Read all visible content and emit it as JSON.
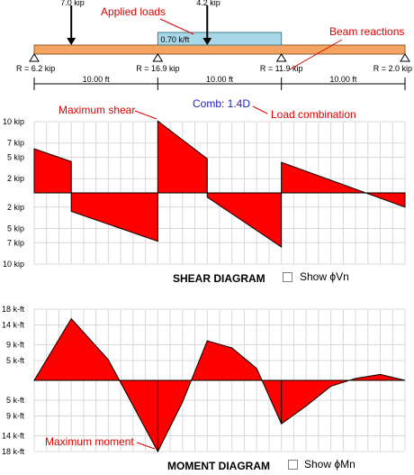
{
  "beam": {
    "point_loads": [
      {
        "label": "7.0 kip",
        "value_kip": 7.0,
        "position_ft": 3.0
      },
      {
        "label": "4.2 kip",
        "value_kip": 4.2,
        "position_ft": 14.0
      }
    ],
    "distributed_load": {
      "label": "0.70 k/ft",
      "value_kft": 0.7,
      "start_ft": 10.0,
      "end_ft": 20.0
    },
    "supports": [
      {
        "label": "R = 6.2 kip",
        "position_ft": 0
      },
      {
        "label": "R = 16.9 kip",
        "position_ft": 10
      },
      {
        "label": "R = 11.9 kip",
        "position_ft": 20
      },
      {
        "label": "R = 2.0 kip",
        "position_ft": 30
      }
    ],
    "spans": [
      "10.00 ft",
      "10.00 ft",
      "10.00 ft"
    ],
    "total_length_ft": 30
  },
  "annotations": {
    "applied_loads": "Applied loads",
    "beam_reactions": "Beam reactions",
    "maximum_shear": "Maximum shear",
    "load_combination": "Load combination",
    "maximum_moment": "Maximum moment"
  },
  "load_combination_value": "Comb: 1.4D",
  "colors": {
    "annotation": "#e00000",
    "combo": "#2020c0",
    "diagram_fill": "#ff0000",
    "beam": "#f4a460",
    "dist_load": "#a8d8e8",
    "grid": "#d8d8d8"
  },
  "shear": {
    "title": "SHEAR DIAGRAM",
    "checkbox_label": "Show ϕVn",
    "y_ticks": [
      {
        "value": 10,
        "label": "10 kip"
      },
      {
        "value": 7,
        "label": "7 kip"
      },
      {
        "value": 5,
        "label": "5 kip"
      },
      {
        "value": 2,
        "label": "2 kip"
      },
      {
        "value": -2,
        "label": "2 kip"
      },
      {
        "value": -5,
        "label": "5 kip"
      },
      {
        "value": -7,
        "label": "7 kip"
      },
      {
        "value": -10,
        "label": "10 kip"
      }
    ],
    "ylim": [
      -10,
      10
    ],
    "points": [
      [
        0,
        0
      ],
      [
        0,
        6.2
      ],
      [
        3,
        4.4
      ],
      [
        3,
        -2.6
      ],
      [
        10,
        -6.8
      ],
      [
        10,
        10.1
      ],
      [
        14,
        4.8
      ],
      [
        14,
        -0.6
      ],
      [
        20,
        -7.6
      ],
      [
        20,
        4.3
      ],
      [
        30,
        -2.0
      ],
      [
        30,
        0
      ]
    ]
  },
  "moment": {
    "title": "MOMENT DIAGRAM",
    "checkbox_label": "Show ϕMn",
    "y_ticks": [
      {
        "value": 18,
        "label": "18 k-ft"
      },
      {
        "value": 14,
        "label": "14 k-ft"
      },
      {
        "value": 9,
        "label": "9 k-ft"
      },
      {
        "value": 5,
        "label": "5 k-ft"
      },
      {
        "value": -5,
        "label": "5 k-ft"
      },
      {
        "value": -9,
        "label": "9 k-ft"
      },
      {
        "value": -14,
        "label": "14 k-ft"
      },
      {
        "value": -18,
        "label": "18 k-ft"
      }
    ],
    "ylim": [
      -18,
      18
    ],
    "points": [
      [
        0,
        0
      ],
      [
        3,
        15.6
      ],
      [
        6,
        5.2
      ],
      [
        10,
        -18.0
      ],
      [
        12,
        -5.5
      ],
      [
        14,
        10.0
      ],
      [
        16,
        8.2
      ],
      [
        18,
        3.0
      ],
      [
        20,
        -11.0
      ],
      [
        22,
        -6.5
      ],
      [
        24,
        -1.5
      ],
      [
        26,
        0.5
      ],
      [
        28,
        1.5
      ],
      [
        30,
        0
      ]
    ]
  }
}
